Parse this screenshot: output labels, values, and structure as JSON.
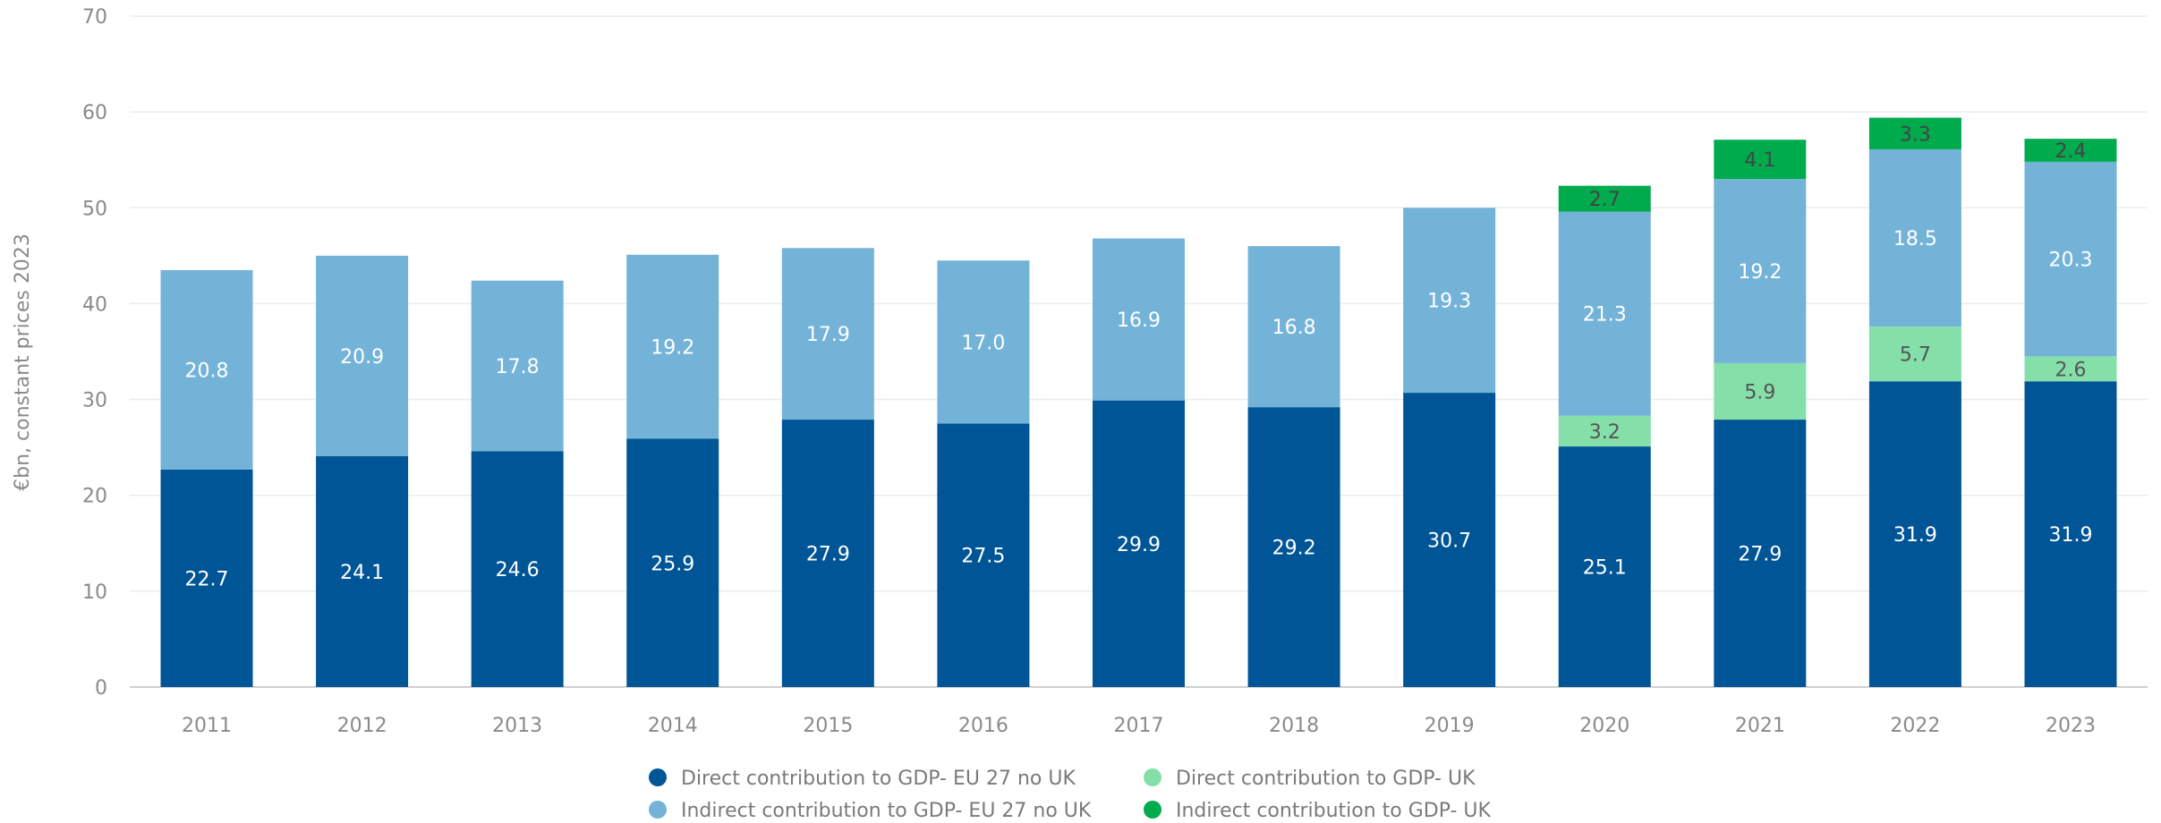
{
  "chart_data": {
    "type": "bar",
    "stacked": true,
    "title": "",
    "xlabel": "",
    "ylabel": "€bn, constant prices 2023",
    "ylim": [
      0,
      70
    ],
    "yticks": [
      0,
      10,
      20,
      30,
      40,
      50,
      60,
      70
    ],
    "grid": true,
    "legend_position": "bottom",
    "categories": [
      "2011",
      "2012",
      "2013",
      "2014",
      "2015",
      "2016",
      "2017",
      "2018",
      "2019",
      "2020",
      "2021",
      "2022",
      "2023"
    ],
    "series": [
      {
        "name": "Direct contribution to GDP- EU 27 no UK",
        "color": "#005596",
        "label_color": "#ffffff",
        "values": [
          22.7,
          24.1,
          24.6,
          25.9,
          27.9,
          27.5,
          29.9,
          29.2,
          30.7,
          25.1,
          27.9,
          31.9,
          31.9
        ]
      },
      {
        "name": "Direct contribution to GDP- UK",
        "color": "#84dfa9",
        "label_color": "#555555",
        "values": [
          null,
          null,
          null,
          null,
          null,
          null,
          null,
          null,
          null,
          3.2,
          5.9,
          5.7,
          2.6
        ]
      },
      {
        "name": "Indirect contribution to GDP- EU 27 no UK",
        "color": "#74b3d8",
        "label_color": "#ffffff",
        "values": [
          20.8,
          20.9,
          17.8,
          19.2,
          17.9,
          17.0,
          16.9,
          16.8,
          19.3,
          21.3,
          19.2,
          18.5,
          20.3
        ]
      },
      {
        "name": "Indirect contribution to GDP- UK",
        "color": "#00ab4e",
        "label_color": "#444444",
        "values": [
          null,
          null,
          null,
          null,
          null,
          null,
          null,
          null,
          null,
          2.7,
          4.1,
          3.3,
          2.4
        ]
      }
    ],
    "legend_order": [
      "Direct contribution to GDP- EU 27 no UK",
      "Direct contribution to GDP- UK",
      "Indirect contribution to GDP- EU 27 no UK",
      "Indirect contribution to GDP- UK"
    ]
  }
}
